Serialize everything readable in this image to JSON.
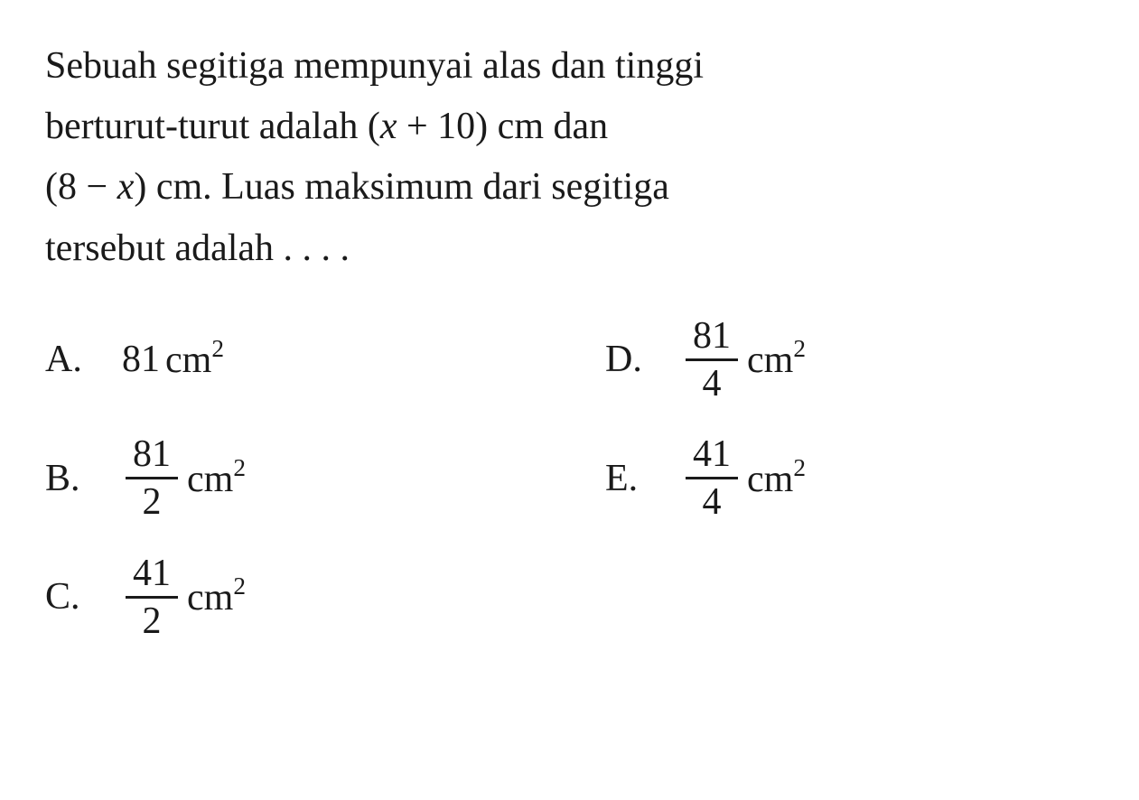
{
  "question": {
    "line1_pre": "Sebuah segitiga mempunyai alas dan tinggi",
    "line2_pre": "berturut-turut adalah (",
    "line2_var": "x",
    "line2_post": " + 10) cm dan",
    "line3_pre": "(8 − ",
    "line3_var": "x",
    "line3_post": ") cm. Luas maksimum dari segitiga",
    "line4": "tersebut adalah . . . ."
  },
  "options": {
    "A": {
      "label": "A.",
      "type": "integer",
      "value": "81",
      "unit_base": "cm",
      "unit_exp": "2"
    },
    "B": {
      "label": "B.",
      "type": "fraction",
      "numerator": "81",
      "denominator": "2",
      "unit_base": "cm",
      "unit_exp": "2"
    },
    "C": {
      "label": "C.",
      "type": "fraction",
      "numerator": "41",
      "denominator": "2",
      "unit_base": "cm",
      "unit_exp": "2"
    },
    "D": {
      "label": "D.",
      "type": "fraction",
      "numerator": "81",
      "denominator": "4",
      "unit_base": "cm",
      "unit_exp": "2"
    },
    "E": {
      "label": "E.",
      "type": "fraction",
      "numerator": "41",
      "denominator": "4",
      "unit_base": "cm",
      "unit_exp": "2"
    }
  },
  "styling": {
    "background_color": "#ffffff",
    "text_color": "#1a1a1a",
    "font_family": "Georgia, Times New Roman, serif",
    "question_fontsize": 42,
    "option_fontsize": 42,
    "line_height": 1.6,
    "fraction_bar_width": 3,
    "fraction_bar_color": "#1a1a1a"
  }
}
